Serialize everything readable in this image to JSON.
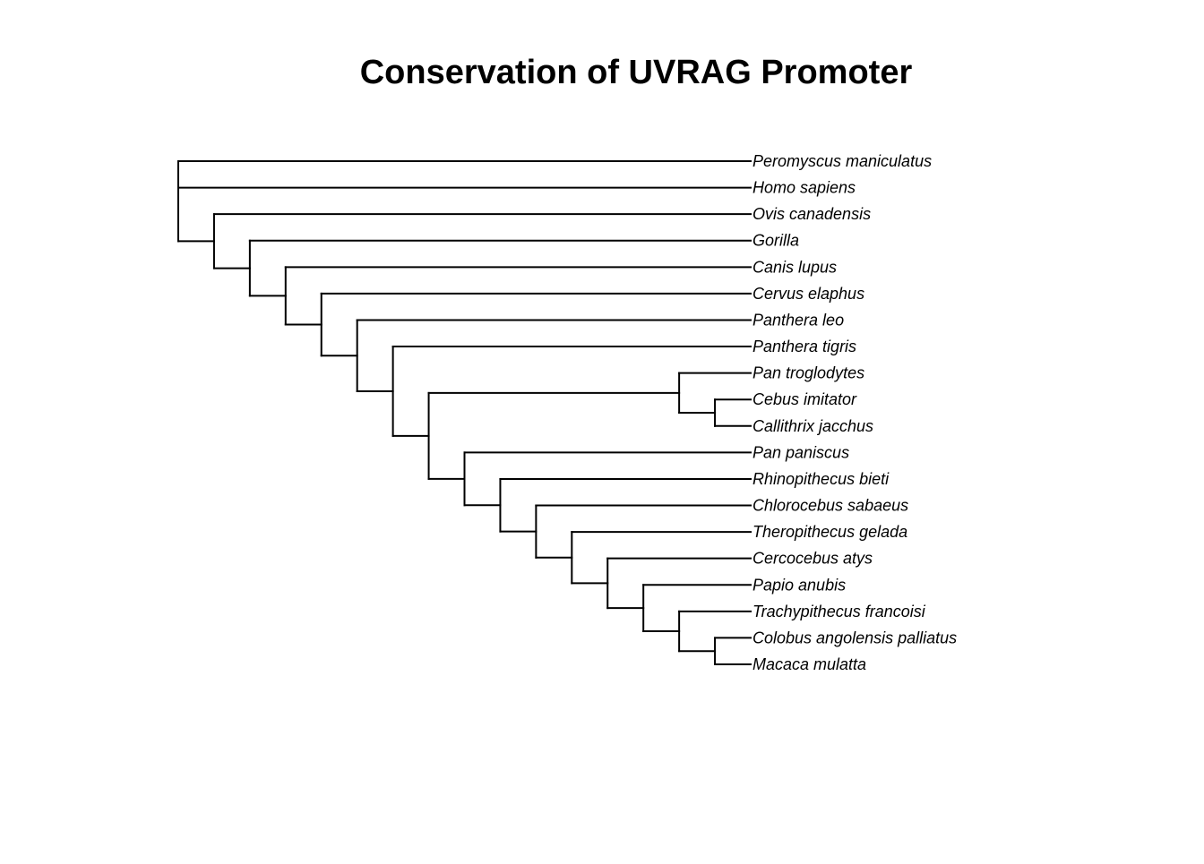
{
  "title": "Conservation of UVRAG Promoter",
  "colors": {
    "line": "#000000",
    "text": "#000000",
    "background": "#ffffff"
  },
  "tree": {
    "type": "cladogram",
    "tips": [
      "Peromyscus maniculatus",
      "Homo sapiens",
      "Ovis canadensis",
      "Gorilla",
      "Canis lupus",
      "Cervus elaphus",
      "Panthera leo",
      "Panthera tigris",
      "Pan troglodytes",
      "Cebus imitator",
      "Callithrix jacchus",
      "Pan paniscus",
      "Rhinopithecus bieti",
      "Chlorocebus sabaeus",
      "Theropithecus gelada",
      "Cercocebus atys",
      "Papio anubis",
      "Trachypithecus francoisi",
      "Colobus angolensis palliatus",
      "Macaca mulatta"
    ],
    "newick": "(Peromyscus maniculatus,Homo sapiens,(Ovis canadensis,(Gorilla,(Canis lupus,(Cervus elaphus,(Panthera leo,(Panthera tigris,((Pan troglodytes,(Cebus imitator,Callithrix jacchus)),(Pan paniscus,(Rhinopithecus bieti,(Chlorocebus sabaeus,(Theropithecus gelada,(Cercocebus atys,(Papio anubis,(Trachypithecus francoisi,(Colobus angolensis palliatus,Macaca mulatta))))))))))))))));"
  }
}
